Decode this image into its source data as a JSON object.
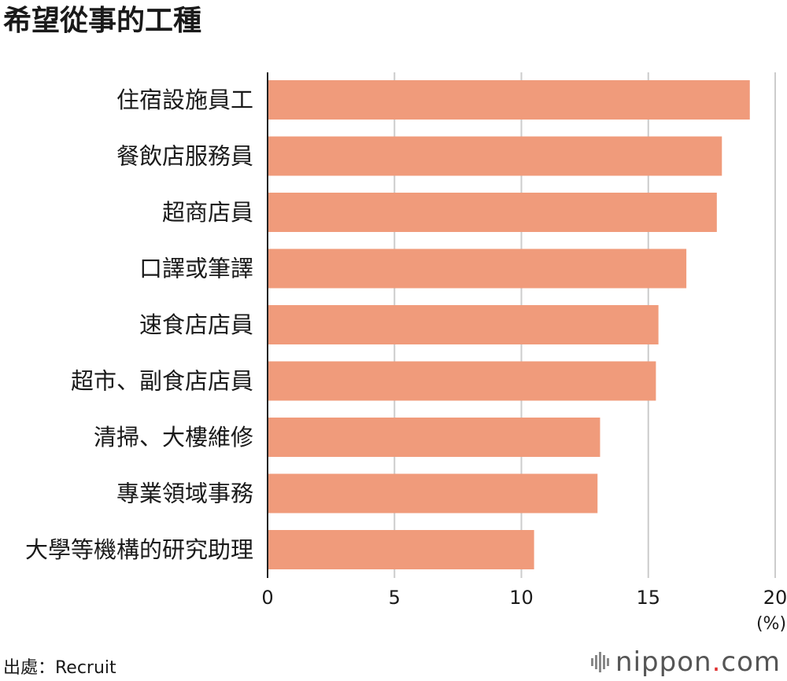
{
  "header": {
    "title": "希望從事的工種"
  },
  "footer": {
    "source": "出處：Recruit",
    "logo_name": "nippon",
    "logo_dot": ".",
    "logo_tld": "com"
  },
  "chart_data": {
    "type": "bar",
    "orientation": "horizontal",
    "title": "希望從事的工種",
    "categories": [
      "住宿設施員工",
      "餐飲店服務員",
      "超商店員",
      "口譯或筆譯",
      "速食店店員",
      "超市、副食店店員",
      "清掃、大樓維修",
      "專業領域事務",
      "大學等機構的研究助理"
    ],
    "values": [
      19.0,
      17.9,
      17.7,
      16.5,
      15.4,
      15.3,
      13.1,
      13.0,
      10.5
    ],
    "xlim": [
      0,
      20
    ],
    "xticks": [
      0,
      5,
      10,
      15,
      20
    ],
    "xunit": "(%)",
    "grid": true,
    "bar_color": "#f09b7b",
    "grid_color": "#cccccc",
    "axis_color": "#222222"
  }
}
